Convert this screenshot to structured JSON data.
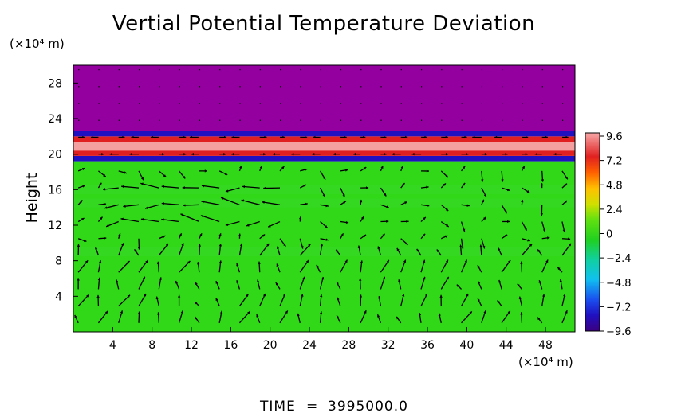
{
  "chart_data": {
    "type": "heatmap",
    "title": "Vertial Potential Temperature Deviation",
    "ylabel": "Height",
    "y_unit": "(×10⁴ m)",
    "x_unit": "(×10⁴ m)",
    "xlim": [
      0,
      51
    ],
    "ylim": [
      0,
      30
    ],
    "x_ticks": [
      4,
      8,
      12,
      16,
      20,
      24,
      28,
      32,
      36,
      40,
      44,
      48
    ],
    "y_ticks": [
      4,
      8,
      12,
      16,
      20,
      24,
      28
    ],
    "colorbar": {
      "ticks": [
        9.6,
        7.2,
        4.8,
        2.4,
        0,
        -2.4,
        -4.8,
        -7.2,
        -9.6
      ],
      "tick_labels": [
        "9.6",
        "7.2",
        "4.8",
        "2.4",
        "0",
        "−2.4",
        "−4.8",
        "−7.2",
        "−9.6"
      ],
      "range": [
        -9.6,
        9.6
      ]
    },
    "layers": [
      {
        "y_from": 0,
        "y_to": 19.2,
        "value": 1.5
      },
      {
        "y_from": 19.2,
        "y_to": 19.8,
        "value": -6
      },
      {
        "y_from": 19.8,
        "y_to": 20.4,
        "value": 8
      },
      {
        "y_from": 20.4,
        "y_to": 21.4,
        "value": 9.6
      },
      {
        "y_from": 21.4,
        "y_to": 22.0,
        "value": 7
      },
      {
        "y_from": 22.0,
        "y_to": 22.6,
        "value": -6
      },
      {
        "y_from": 22.6,
        "y_to": 30,
        "value": -9.6
      }
    ],
    "vector_field": "velocity arrows on regular grid, strong horizontal jets near height 13-15"
  },
  "footer": {
    "time_label": "TIME",
    "equals": "=",
    "time_value": "3995000.0"
  },
  "colors": {
    "background": "#ffffff",
    "purple": "#9400a0",
    "green": "#21d40a",
    "pink": "#f5a0a0",
    "blue": "#1a2ce0"
  }
}
